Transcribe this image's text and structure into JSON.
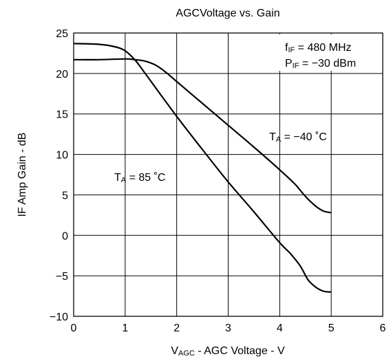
{
  "chart_data": {
    "type": "line",
    "title": "AGCVoltage vs. Gain",
    "xlabel": {
      "main": "V",
      "sub": "AGC",
      "rest": " -  AGC Voltage  - V"
    },
    "ylabel": "IF Amp Gain  - dB",
    "xlim": [
      0,
      6
    ],
    "ylim": [
      -10,
      25
    ],
    "xticks": [
      0,
      1,
      2,
      3,
      4,
      5,
      6
    ],
    "yticks": [
      -10,
      -5,
      0,
      5,
      10,
      15,
      20,
      25
    ],
    "xtick_labels": [
      "0",
      "1",
      "2",
      "3",
      "4",
      "5",
      "6"
    ],
    "ytick_labels": [
      "−10",
      "−5",
      "0",
      "5",
      "10",
      "15",
      "20",
      "25"
    ],
    "grid": true,
    "series": [
      {
        "name": "TA = −40 ˚C",
        "x": [
          0,
          0.5,
          1.0,
          1.2,
          1.4,
          1.6,
          1.8,
          2.0,
          2.5,
          3.0,
          3.5,
          4.0,
          4.3,
          4.5,
          4.7,
          4.85,
          5.0
        ],
        "y": [
          21.7,
          21.7,
          21.8,
          21.7,
          21.5,
          21.0,
          20.1,
          19.0,
          16.3,
          13.6,
          10.9,
          8.1,
          6.3,
          4.8,
          3.6,
          3.0,
          2.8
        ]
      },
      {
        "name": "TA = 85 ˚C",
        "x": [
          0,
          0.5,
          0.8,
          1.0,
          1.2,
          1.4,
          2.0,
          2.5,
          3.0,
          3.5,
          4.0,
          4.2,
          4.4,
          4.55,
          4.7,
          4.85,
          5.0
        ],
        "y": [
          23.7,
          23.6,
          23.3,
          22.8,
          21.6,
          19.9,
          14.7,
          10.6,
          6.6,
          2.9,
          -0.9,
          -2.2,
          -3.8,
          -5.5,
          -6.4,
          -6.9,
          -7.0
        ]
      }
    ],
    "annotations": {
      "conditions": [
        {
          "main": "f",
          "sub": "IF",
          "rest": " = 480 MHz"
        },
        {
          "main": "P",
          "sub": "IF",
          "rest": " = −30 dBm"
        }
      ],
      "curve_labels": [
        {
          "main": "T",
          "sub": "A",
          "rest": " = −40 ˚C"
        },
        {
          "main": "T",
          "sub": "A",
          "rest": " = 85 ˚C"
        }
      ]
    }
  }
}
